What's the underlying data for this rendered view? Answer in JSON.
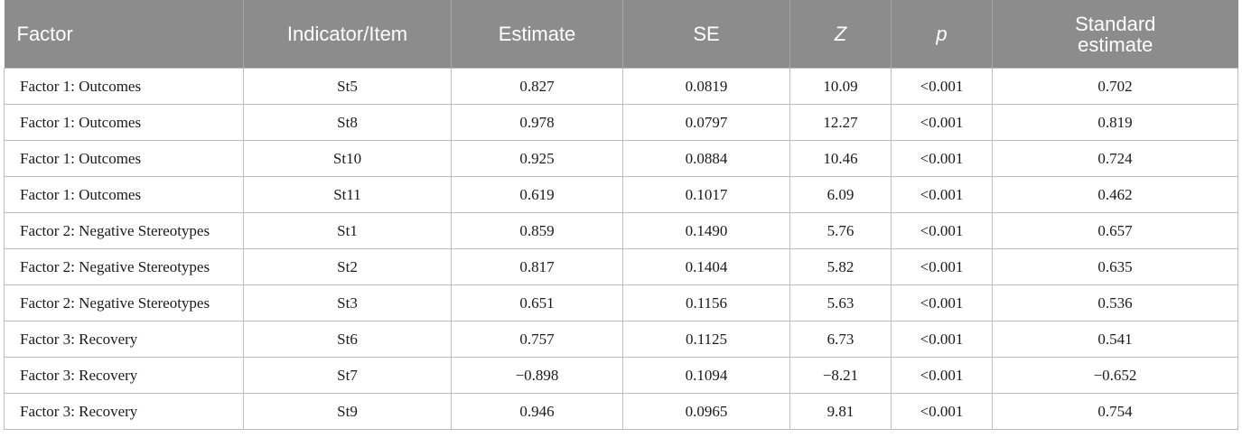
{
  "header": {
    "factor": "Factor",
    "indicator": "Indicator/Item",
    "estimate": "Estimate",
    "se": "SE",
    "z": "Z",
    "p": "p",
    "standard_estimate_line1": "Standard",
    "standard_estimate_line2": "estimate"
  },
  "rows": [
    {
      "factor": "Factor 1: Outcomes",
      "item": "St5",
      "estimate": "0.827",
      "se": "0.0819",
      "z": "10.09",
      "p": "<0.001",
      "std": "0.702"
    },
    {
      "factor": "Factor 1: Outcomes",
      "item": "St8",
      "estimate": "0.978",
      "se": "0.0797",
      "z": "12.27",
      "p": "<0.001",
      "std": "0.819"
    },
    {
      "factor": "Factor 1: Outcomes",
      "item": "St10",
      "estimate": "0.925",
      "se": "0.0884",
      "z": "10.46",
      "p": "<0.001",
      "std": "0.724"
    },
    {
      "factor": "Factor 1: Outcomes",
      "item": "St11",
      "estimate": "0.619",
      "se": "0.1017",
      "z": "6.09",
      "p": "<0.001",
      "std": "0.462"
    },
    {
      "factor": "Factor 2: Negative Stereotypes",
      "item": "St1",
      "estimate": "0.859",
      "se": "0.1490",
      "z": "5.76",
      "p": "<0.001",
      "std": "0.657"
    },
    {
      "factor": "Factor 2: Negative Stereotypes",
      "item": "St2",
      "estimate": "0.817",
      "se": "0.1404",
      "z": "5.82",
      "p": "<0.001",
      "std": "0.635"
    },
    {
      "factor": "Factor 2: Negative Stereotypes",
      "item": "St3",
      "estimate": "0.651",
      "se": "0.1156",
      "z": "5.63",
      "p": "<0.001",
      "std": "0.536"
    },
    {
      "factor": "Factor 3: Recovery",
      "item": "St6",
      "estimate": "0.757",
      "se": "0.1125",
      "z": "6.73",
      "p": "<0.001",
      "std": "0.541"
    },
    {
      "factor": "Factor 3: Recovery",
      "item": "St7",
      "estimate": "−0.898",
      "se": "0.1094",
      "z": "−8.21",
      "p": "<0.001",
      "std": "−0.652"
    },
    {
      "factor": "Factor 3: Recovery",
      "item": "St9",
      "estimate": "0.946",
      "se": "0.0965",
      "z": "9.81",
      "p": "<0.001",
      "std": "0.754"
    }
  ]
}
